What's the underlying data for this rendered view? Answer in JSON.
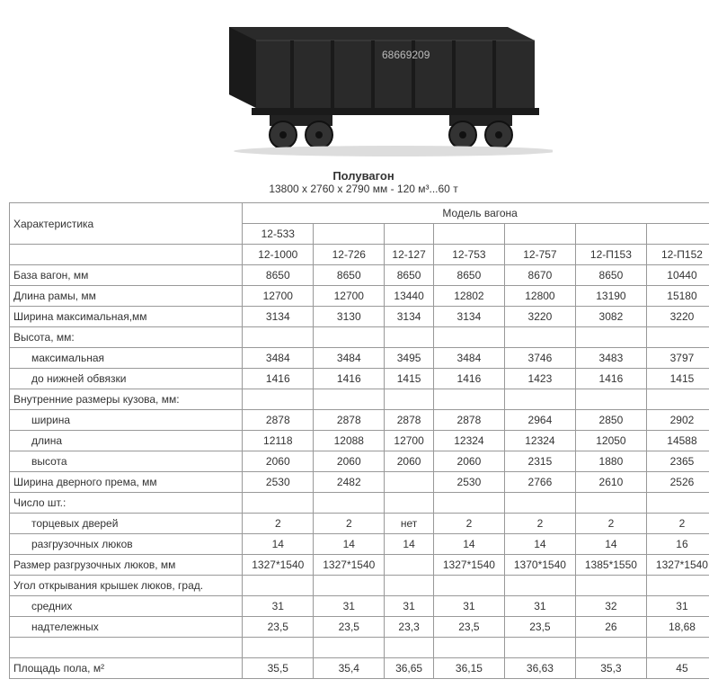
{
  "title": "Полувагон",
  "subtitle": "13800 х 2760 х 2790 мм - 120 м³...60 т",
  "wagon_number": "68669209",
  "table": {
    "col_label": "Характеристика",
    "models_header": "Модель вагона",
    "model_top": "12-533",
    "models": [
      "12-1000",
      "12-726",
      "12-127",
      "12-753",
      "12-757",
      "12-П153",
      "12-П152"
    ],
    "rows": [
      {
        "label": "База вагон, мм",
        "indent": false,
        "values": [
          "8650",
          "8650",
          "8650",
          "8650",
          "8670",
          "8650",
          "10440"
        ]
      },
      {
        "label": "Длина рамы, мм",
        "indent": false,
        "values": [
          "12700",
          "12700",
          "13440",
          "12802",
          "12800",
          "13190",
          "15180"
        ]
      },
      {
        "label": "Ширина максимальная,мм",
        "indent": false,
        "values": [
          "3134",
          "3130",
          "3134",
          "3134",
          "3220",
          "3082",
          "3220"
        ]
      },
      {
        "label": "Высота, мм:",
        "indent": false,
        "values": [
          "",
          "",
          "",
          "",
          "",
          "",
          ""
        ]
      },
      {
        "label": "максимальная",
        "indent": true,
        "values": [
          "3484",
          "3484",
          "3495",
          "3484",
          "3746",
          "3483",
          "3797"
        ]
      },
      {
        "label": "до нижней обвязки",
        "indent": true,
        "values": [
          "1416",
          "1416",
          "1415",
          "1416",
          "1423",
          "1416",
          "1415"
        ]
      },
      {
        "label": "Внутренние размеры кузова, мм:",
        "indent": false,
        "values": [
          "",
          "",
          "",
          "",
          "",
          "",
          ""
        ]
      },
      {
        "label": "ширина",
        "indent": true,
        "values": [
          "2878",
          "2878",
          "2878",
          "2878",
          "2964",
          "2850",
          "2902"
        ]
      },
      {
        "label": "длина",
        "indent": true,
        "values": [
          "12118",
          "12088",
          "12700",
          "12324",
          "12324",
          "12050",
          "14588"
        ]
      },
      {
        "label": "высота",
        "indent": true,
        "values": [
          "2060",
          "2060",
          "2060",
          "2060",
          "2315",
          "1880",
          "2365"
        ]
      },
      {
        "label": "Ширина дверного према, мм",
        "indent": false,
        "values": [
          "2530",
          "2482",
          "",
          "2530",
          "2766",
          "2610",
          "2526"
        ]
      },
      {
        "label": "Число шт.:",
        "indent": false,
        "values": [
          "",
          "",
          "",
          "",
          "",
          "",
          ""
        ]
      },
      {
        "label": "торцевых дверей",
        "indent": true,
        "values": [
          "2",
          "2",
          "нет",
          "2",
          "2",
          "2",
          "2"
        ]
      },
      {
        "label": "разгрузочных люков",
        "indent": true,
        "values": [
          "14",
          "14",
          "14",
          "14",
          "14",
          "14",
          "16"
        ]
      },
      {
        "label": "Размер разгрузочных люков, мм",
        "indent": false,
        "values": [
          "1327*1540",
          "1327*1540",
          "",
          "1327*1540",
          "1370*1540",
          "1385*1550",
          "1327*1540"
        ]
      },
      {
        "label": "Угол открывания крышек люков, град.",
        "indent": false,
        "values": [
          "",
          "",
          "",
          "",
          "",
          "",
          ""
        ]
      },
      {
        "label": "средних",
        "indent": true,
        "values": [
          "31",
          "31",
          "31",
          "31",
          "31",
          "32",
          "31"
        ]
      },
      {
        "label": "надтележных",
        "indent": true,
        "values": [
          "23,5",
          "23,5",
          "23,3",
          "23,5",
          "23,5",
          "26",
          "18,68"
        ]
      },
      {
        "label": "",
        "indent": false,
        "values": [
          "",
          "",
          "",
          "",
          "",
          "",
          ""
        ]
      },
      {
        "label": "Площадь пола, м²",
        "indent": false,
        "values": [
          "35,5",
          "35,4",
          "36,65",
          "36,15",
          "36,63",
          "35,3",
          "45"
        ]
      }
    ]
  },
  "colors": {
    "border": "#999999",
    "text": "#333333",
    "wagon_body": "#2a2a2a",
    "wagon_dark": "#1a1a1a",
    "wheel": "#333333"
  }
}
